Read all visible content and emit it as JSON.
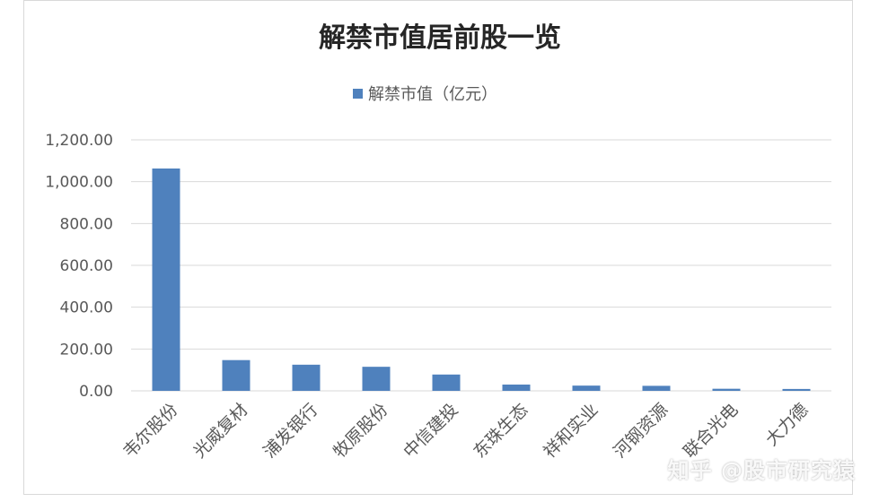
{
  "chart_data": {
    "type": "bar",
    "title": "解禁市值居前股一览",
    "legend": {
      "position": "top",
      "entries": [
        "解禁市值（亿元）"
      ]
    },
    "categories": [
      "韦尔股份",
      "光威复材",
      "浦发银行",
      "牧原股份",
      "中信建投",
      "东珠生态",
      "祥和实业",
      "河钢资源",
      "联合光电",
      "大力德"
    ],
    "series": [
      {
        "name": "解禁市值（亿元）",
        "values": [
          1063,
          147,
          125,
          115,
          78,
          30,
          25,
          24,
          10,
          9
        ]
      }
    ],
    "yticks": [
      "0.00",
      "200.00",
      "400.00",
      "600.00",
      "800.00",
      "1,000.00",
      "1,200.00"
    ],
    "ylim": [
      0,
      1200
    ],
    "grid": true,
    "colors": {
      "bar": "#4f81bd",
      "grid": "#d9d9d9",
      "text": "#595959"
    }
  },
  "watermark": "知乎 @股市研究猿"
}
